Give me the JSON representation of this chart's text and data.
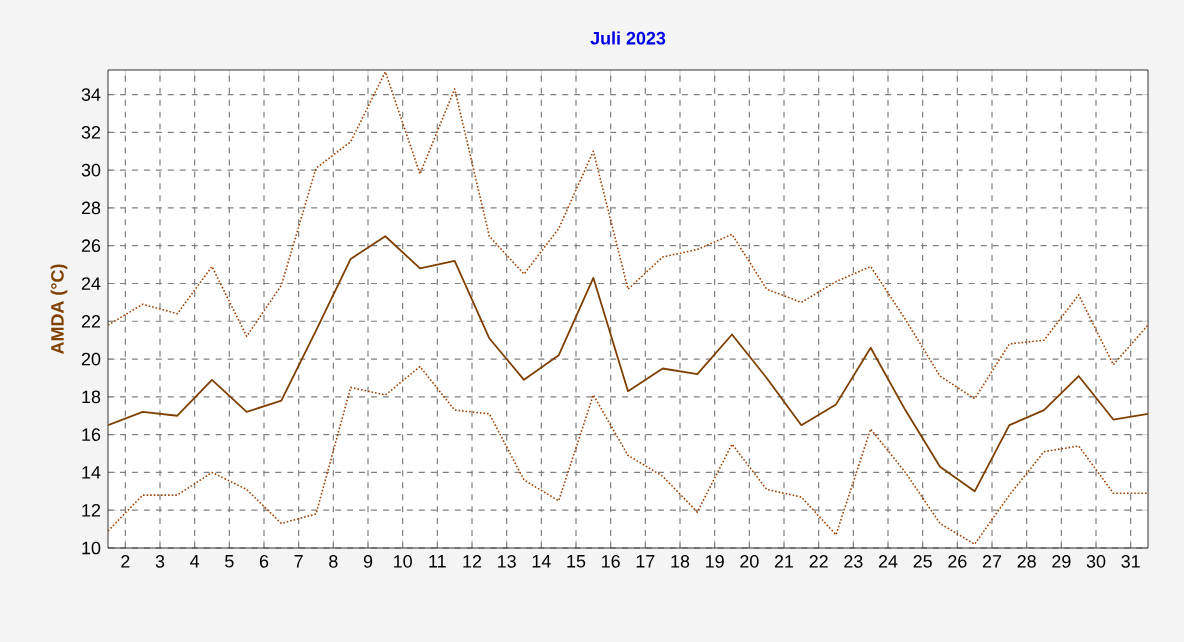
{
  "chart_data": {
    "type": "line",
    "title": "Juli 2023",
    "ylabel": "AMDA  (°C)",
    "x": [
      1,
      2,
      3,
      4,
      5,
      6,
      7,
      8,
      9,
      10,
      11,
      12,
      13,
      14,
      15,
      16,
      17,
      18,
      19,
      20,
      21,
      22,
      23,
      24,
      25,
      26,
      27,
      28,
      29,
      30,
      31
    ],
    "xlim": [
      1,
      31
    ],
    "ylim": [
      10,
      35.3
    ],
    "xticks": [
      {
        "value": 1.5,
        "label": "2"
      },
      {
        "value": 2.5,
        "label": "3"
      },
      {
        "value": 3.5,
        "label": "4"
      },
      {
        "value": 4.5,
        "label": "5"
      },
      {
        "value": 5.5,
        "label": "6"
      },
      {
        "value": 6.5,
        "label": "7"
      },
      {
        "value": 7.5,
        "label": "8"
      },
      {
        "value": 8.5,
        "label": "9"
      },
      {
        "value": 9.5,
        "label": "10"
      },
      {
        "value": 10.5,
        "label": "11"
      },
      {
        "value": 11.5,
        "label": "12"
      },
      {
        "value": 12.5,
        "label": "13"
      },
      {
        "value": 13.5,
        "label": "14"
      },
      {
        "value": 14.5,
        "label": "15"
      },
      {
        "value": 15.5,
        "label": "16"
      },
      {
        "value": 16.5,
        "label": "17"
      },
      {
        "value": 17.5,
        "label": "18"
      },
      {
        "value": 18.5,
        "label": "19"
      },
      {
        "value": 19.5,
        "label": "20"
      },
      {
        "value": 20.5,
        "label": "21"
      },
      {
        "value": 21.5,
        "label": "22"
      },
      {
        "value": 22.5,
        "label": "23"
      },
      {
        "value": 23.5,
        "label": "24"
      },
      {
        "value": 24.5,
        "label": "25"
      },
      {
        "value": 25.5,
        "label": "26"
      },
      {
        "value": 26.5,
        "label": "27"
      },
      {
        "value": 27.5,
        "label": "28"
      },
      {
        "value": 28.5,
        "label": "29"
      },
      {
        "value": 29.5,
        "label": "30"
      },
      {
        "value": 30.5,
        "label": "31"
      }
    ],
    "yticks": [
      10,
      12,
      14,
      16,
      18,
      20,
      22,
      24,
      26,
      28,
      30,
      32,
      34
    ],
    "grid": true,
    "marker": "none",
    "series": [
      {
        "color": "#a04000",
        "line_style": "dotted",
        "values": [
          21.8,
          22.9,
          22.4,
          24.9,
          21.2,
          23.9,
          30.1,
          31.5,
          35.2,
          29.8,
          34.3,
          26.5,
          24.5,
          26.9,
          31.0,
          23.7,
          25.4,
          25.8,
          26.6,
          23.7,
          23.0,
          24.1,
          24.9,
          22.1,
          19.1,
          17.9,
          20.8,
          21.0,
          23.4,
          19.7,
          21.8
        ]
      },
      {
        "color": "#7f3f00",
        "line_style": "solid",
        "values": [
          16.5,
          17.2,
          17.0,
          18.9,
          17.2,
          17.8,
          21.5,
          25.3,
          26.5,
          24.8,
          25.2,
          21.1,
          18.9,
          20.2,
          24.3,
          18.3,
          19.5,
          19.2,
          21.3,
          19.0,
          16.5,
          17.6,
          20.6,
          17.3,
          14.3,
          13.0,
          16.5,
          17.3,
          19.1,
          16.8,
          17.1
        ]
      },
      {
        "color": "#a04000",
        "line_style": "dotted",
        "values": [
          10.9,
          12.8,
          12.8,
          14.0,
          13.1,
          11.3,
          11.8,
          18.5,
          18.1,
          19.6,
          17.3,
          17.1,
          13.6,
          12.5,
          18.1,
          14.9,
          13.8,
          11.9,
          15.5,
          13.1,
          12.7,
          10.7,
          16.3,
          14.0,
          11.3,
          10.2,
          12.8,
          15.1,
          15.4,
          12.9,
          12.9
        ]
      }
    ]
  }
}
